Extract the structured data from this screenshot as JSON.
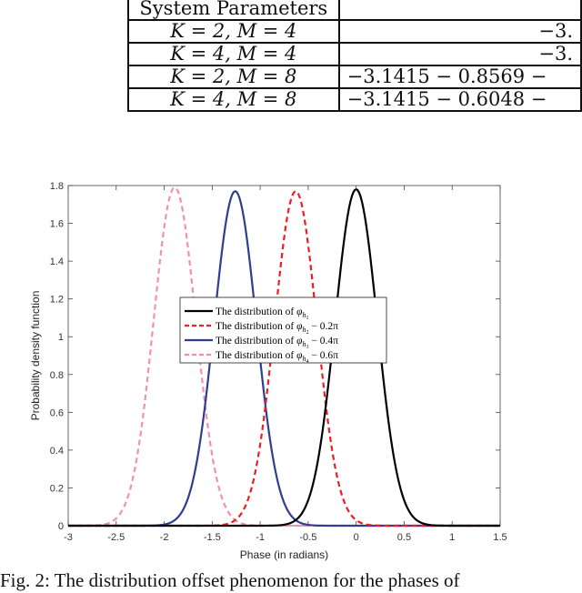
{
  "table": {
    "rows": [
      {
        "params": "System Parameters",
        "values": ""
      },
      {
        "params": "K = 2, M = 4",
        "values": "−3."
      },
      {
        "params": "K = 4, M = 4",
        "values": "−3."
      },
      {
        "params": "K = 2, M = 8",
        "values": "−3.1415  − 0.8569  −"
      },
      {
        "params": "K = 4, M = 8",
        "values": "−3.1415  − 0.6048  −"
      }
    ]
  },
  "chart_data": {
    "type": "line",
    "xlabel": "Phase (in radians)",
    "ylabel": "Probability density function",
    "xlim": [
      -3,
      1.5
    ],
    "ylim": [
      0,
      1.8
    ],
    "xticks": [
      "-3",
      "-2.5",
      "-2",
      "-1.5",
      "-1",
      "-0.5",
      "0",
      "0.5",
      "1",
      "1.5"
    ],
    "yticks": [
      "0",
      "0.2",
      "0.4",
      "0.6",
      "0.8",
      "1",
      "1.2",
      "1.4",
      "1.6",
      "1.8"
    ],
    "grid": false,
    "legend_position": "center",
    "series": [
      {
        "name": "The distribution of φh1",
        "color": "#000000",
        "dash": "solid",
        "center": 0,
        "peak": 1.78,
        "sigma": 0.22
      },
      {
        "name": "The distribution of φh2 − 0.2π",
        "color": "#ee1c25",
        "dash": "dashed",
        "center": -0.63,
        "peak": 1.77,
        "sigma": 0.22
      },
      {
        "name": "The distribution of φh3 − 0.4π",
        "color": "#2e3f8f",
        "dash": "solid",
        "center": -1.26,
        "peak": 1.77,
        "sigma": 0.22
      },
      {
        "name": "The distribution of φh4 − 0.6π",
        "color": "#f48fb1",
        "dash": "dashed",
        "center": -1.89,
        "peak": 1.79,
        "sigma": 0.22
      }
    ]
  },
  "legend_entries": [
    {
      "prefix": "The distribution of ",
      "var": "φ",
      "sub": "h",
      "subsub": "1",
      "suffix": ""
    },
    {
      "prefix": "The distribution of ",
      "var": "φ",
      "sub": "h",
      "subsub": "2",
      "suffix": " − 0.2π"
    },
    {
      "prefix": "The distribution of ",
      "var": "φ",
      "sub": "h",
      "subsub": "3",
      "suffix": " − 0.4π"
    },
    {
      "prefix": "The distribution of ",
      "var": "φ",
      "sub": "h",
      "subsub": "4",
      "suffix": " − 0.6π"
    }
  ],
  "caption": "Fig. 2: The distribution offset phenomenon for the phases of"
}
